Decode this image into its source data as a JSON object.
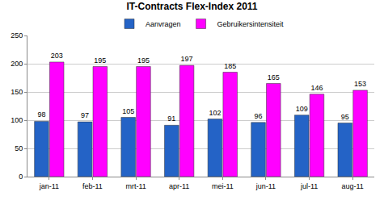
{
  "chart_data": {
    "type": "bar",
    "title": "IT-Contracts Flex-Index 2011",
    "categories": [
      "jan-11",
      "feb-11",
      "mrt-11",
      "apr-11",
      "mei-11",
      "jun-11",
      "jul-11",
      "aug-11"
    ],
    "series": [
      {
        "name": "Aanvragen",
        "color": "#2463c6",
        "values": [
          98,
          97,
          105,
          91,
          102,
          96,
          109,
          95
        ]
      },
      {
        "name": "Gebruikersintensiteit",
        "color": "#ff00ff",
        "values": [
          203,
          195,
          195,
          197,
          185,
          165,
          146,
          153
        ]
      }
    ],
    "ylim": [
      0,
      250
    ],
    "yticks": [
      0,
      50,
      100,
      150,
      200,
      250
    ],
    "grid": true,
    "legend": "top",
    "data_labels": true
  }
}
